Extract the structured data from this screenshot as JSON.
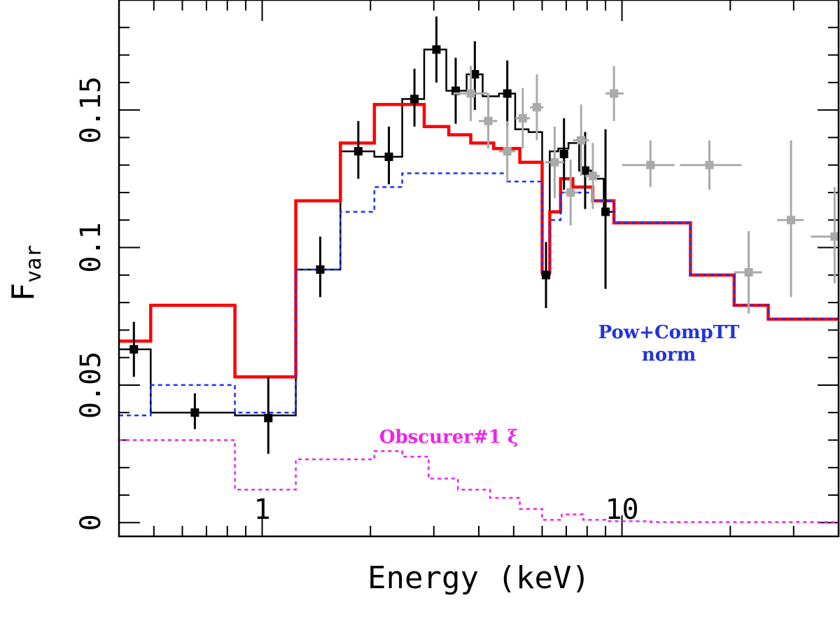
{
  "chart_data": {
    "type": "line",
    "title": "",
    "xlabel": "Energy (keV)",
    "ylabel_main": "F",
    "ylabel_sub": "var",
    "xscale": "log",
    "xlim": [
      0.4,
      40
    ],
    "ylim": [
      -0.005,
      0.19
    ],
    "x_major_ticks": [
      1,
      10
    ],
    "x_tick_labels": [
      "1",
      "10"
    ],
    "y_major_ticks": [
      0,
      0.05,
      0.1,
      0.15
    ],
    "y_tick_labels": [
      "0",
      "0.05",
      "0.1",
      "0.15"
    ],
    "annotations": [
      {
        "lines": [
          "Pow+CompTT",
          "norm"
        ],
        "color": "#2233dd",
        "anchor_x": 13.5,
        "anchor_y": 0.067
      },
      {
        "lines": [
          "Obscurer#1 ξ"
        ],
        "color": "#ee22ee",
        "anchor_x": 3.3,
        "anchor_y": 0.029
      }
    ],
    "series": [
      {
        "name": "Data step model (black)",
        "style": "step",
        "color": "#000000",
        "edges": [
          0.4,
          0.49,
          0.84,
          1.24,
          1.65,
          2.05,
          2.45,
          2.82,
          3.25,
          3.7,
          4.1,
          4.55,
          5.05,
          5.5,
          6.0,
          6.3,
          6.65,
          7.1,
          7.6,
          8.2,
          8.9,
          9.6
        ],
        "values": [
          0.063,
          0.04,
          0.039,
          0.092,
          0.135,
          0.133,
          0.154,
          0.172,
          0.157,
          0.163,
          0.155,
          0.156,
          0.143,
          0.142,
          0.09,
          0.135,
          0.136,
          0.138,
          0.128,
          0.125,
          0.113
        ]
      },
      {
        "name": "Total model (red)",
        "style": "step",
        "color": "#ff0000",
        "edges": [
          0.4,
          0.49,
          0.84,
          1.24,
          1.65,
          2.05,
          2.82,
          3.3,
          3.8,
          4.4,
          5.2,
          6.0,
          6.3,
          6.75,
          7.3,
          8.3,
          9.5,
          10.3,
          15.5,
          20.5,
          25.5,
          40.0
        ],
        "values": [
          0.066,
          0.079,
          0.053,
          0.117,
          0.138,
          0.152,
          0.144,
          0.141,
          0.138,
          0.136,
          0.131,
          0.091,
          0.113,
          0.125,
          0.122,
          0.117,
          0.109,
          0.109,
          0.09,
          0.079,
          0.074
        ]
      },
      {
        "name": "Pow+CompTT norm (blue dotted)",
        "style": "step",
        "color": "#1a33ff",
        "dash": "6 5",
        "edges": [
          0.4,
          0.49,
          0.84,
          1.24,
          1.65,
          2.05,
          2.45,
          3.5,
          4.8,
          6.0,
          6.3,
          6.75,
          7.3,
          8.3,
          9.5,
          10.3,
          15.5,
          20.5,
          25.5,
          40.0
        ],
        "values": [
          0.039,
          0.05,
          0.04,
          0.092,
          0.113,
          0.122,
          0.127,
          0.127,
          0.124,
          0.09,
          0.11,
          0.12,
          0.12,
          0.117,
          0.109,
          0.109,
          0.09,
          0.079,
          0.074
        ]
      },
      {
        "name": "Obscurer#1 ξ (magenta dotted)",
        "style": "step",
        "color": "#ee22ee",
        "dash": "5 5",
        "edges": [
          0.4,
          0.84,
          1.24,
          2.05,
          2.45,
          2.9,
          3.5,
          4.3,
          5.2,
          6.0,
          6.8,
          7.8,
          9.0,
          12.0,
          40.0
        ],
        "values": [
          0.03,
          0.012,
          0.023,
          0.026,
          0.024,
          0.016,
          0.012,
          0.009,
          0.005,
          0.001,
          0.003,
          0.001,
          0.0005,
          0.0002
        ]
      }
    ],
    "points": [
      {
        "name": "Data (black)",
        "color": "#000000",
        "points": [
          {
            "x": 0.44,
            "y": 0.063,
            "xerr": [
              0.44,
              0.44
            ],
            "yerr": [
              0.053,
              0.073
            ]
          },
          {
            "x": 0.65,
            "y": 0.04,
            "xerr": [
              0.65,
              0.65
            ],
            "yerr": [
              0.034,
              0.047
            ]
          },
          {
            "x": 1.04,
            "y": 0.038,
            "xerr": [
              1.04,
              1.04
            ],
            "yerr": [
              0.025,
              0.053
            ]
          },
          {
            "x": 1.45,
            "y": 0.092,
            "xerr": [
              1.45,
              1.45
            ],
            "yerr": [
              0.082,
              0.104
            ]
          },
          {
            "x": 1.85,
            "y": 0.135,
            "xerr": [
              1.85,
              1.85
            ],
            "yerr": [
              0.125,
              0.146
            ]
          },
          {
            "x": 2.25,
            "y": 0.133,
            "xerr": [
              2.25,
              2.25
            ],
            "yerr": [
              0.123,
              0.144
            ]
          },
          {
            "x": 2.65,
            "y": 0.154,
            "xerr": [
              2.65,
              2.65
            ],
            "yerr": [
              0.144,
              0.165
            ]
          },
          {
            "x": 3.05,
            "y": 0.172,
            "xerr": [
              3.05,
              3.05
            ],
            "yerr": [
              0.16,
              0.184
            ]
          },
          {
            "x": 3.45,
            "y": 0.157,
            "xerr": [
              3.45,
              3.45
            ],
            "yerr": [
              0.145,
              0.169
            ]
          },
          {
            "x": 3.9,
            "y": 0.163,
            "xerr": [
              3.9,
              3.9
            ],
            "yerr": [
              0.15,
              0.175
            ]
          },
          {
            "x": 4.8,
            "y": 0.156,
            "xerr": [
              4.8,
              4.8
            ],
            "yerr": [
              0.144,
              0.168
            ]
          },
          {
            "x": 6.15,
            "y": 0.09,
            "xerr": [
              6.15,
              6.15
            ],
            "yerr": [
              0.078,
              0.102
            ]
          },
          {
            "x": 6.9,
            "y": 0.134,
            "xerr": [
              6.9,
              6.9
            ],
            "yerr": [
              0.121,
              0.147
            ]
          },
          {
            "x": 7.9,
            "y": 0.128,
            "xerr": [
              7.9,
              7.9
            ],
            "yerr": [
              0.114,
              0.142
            ]
          },
          {
            "x": 9.0,
            "y": 0.113,
            "xerr": [
              9.0,
              9.0
            ],
            "yerr": [
              0.085,
              0.143
            ]
          }
        ]
      },
      {
        "name": "Data (gray)",
        "color": "#aaaaaa",
        "points": [
          {
            "x": 3.8,
            "y": 0.156,
            "xerr": [
              3.4,
              4.25
            ],
            "yerr": [
              0.146,
              0.166
            ]
          },
          {
            "x": 4.25,
            "y": 0.146,
            "xerr": [
              4.0,
              4.5
            ],
            "yerr": [
              0.136,
              0.156
            ]
          },
          {
            "x": 4.8,
            "y": 0.135,
            "xerr": [
              4.55,
              5.05
            ],
            "yerr": [
              0.124,
              0.146
            ]
          },
          {
            "x": 5.3,
            "y": 0.147,
            "xerr": [
              5.05,
              5.55
            ],
            "yerr": [
              0.136,
              0.158
            ]
          },
          {
            "x": 5.8,
            "y": 0.151,
            "xerr": [
              5.55,
              6.05
            ],
            "yerr": [
              0.139,
              0.163
            ]
          },
          {
            "x": 6.5,
            "y": 0.131,
            "xerr": [
              6.1,
              6.9
            ],
            "yerr": [
              0.118,
              0.144
            ]
          },
          {
            "x": 7.2,
            "y": 0.12,
            "xerr": [
              6.9,
              7.55
            ],
            "yerr": [
              0.108,
              0.132
            ]
          },
          {
            "x": 7.7,
            "y": 0.139,
            "xerr": [
              7.3,
              8.1
            ],
            "yerr": [
              0.126,
              0.152
            ]
          },
          {
            "x": 8.3,
            "y": 0.126,
            "xerr": [
              7.9,
              8.7
            ],
            "yerr": [
              0.114,
              0.138
            ]
          },
          {
            "x": 9.5,
            "y": 0.156,
            "xerr": [
              9.0,
              10.1
            ],
            "yerr": [
              0.146,
              0.166
            ]
          },
          {
            "x": 12.0,
            "y": 0.13,
            "xerr": [
              10.0,
              14.0
            ],
            "yerr": [
              0.122,
              0.139
            ]
          },
          {
            "x": 17.5,
            "y": 0.13,
            "xerr": [
              14.5,
              21.5
            ],
            "yerr": [
              0.121,
              0.139
            ]
          },
          {
            "x": 22.5,
            "y": 0.091,
            "xerr": [
              20.5,
              24.5
            ],
            "yerr": [
              0.076,
              0.106
            ]
          },
          {
            "x": 29.5,
            "y": 0.11,
            "xerr": [
              27.0,
              32.0
            ],
            "yerr": [
              0.082,
              0.139
            ]
          },
          {
            "x": 39.0,
            "y": 0.104,
            "xerr": [
              33.5,
              44.5
            ],
            "yerr": [
              0.087,
              0.122
            ]
          }
        ]
      }
    ]
  }
}
